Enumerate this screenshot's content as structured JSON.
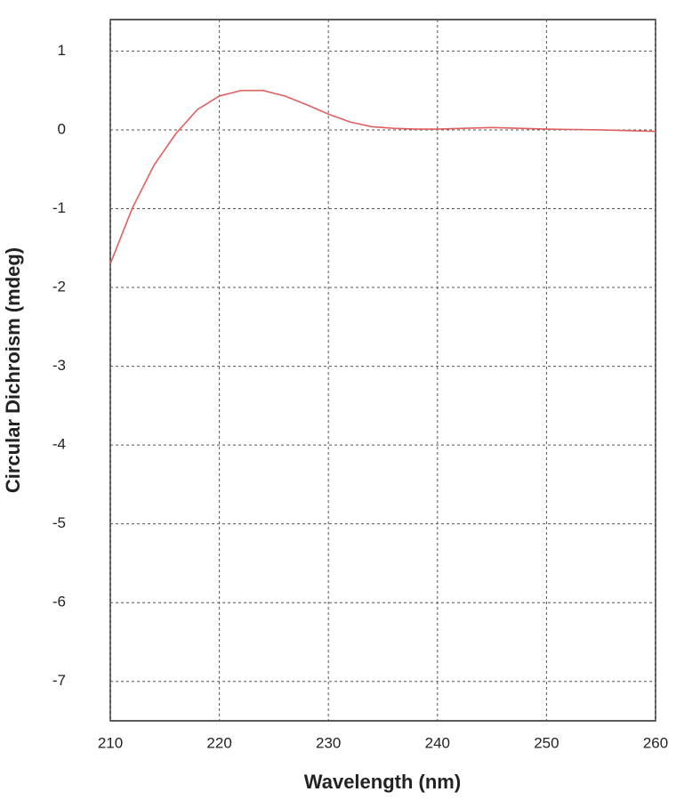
{
  "chart_data": {
    "type": "line",
    "xlabel": "Wavelength (nm)",
    "ylabel": "Circular Dichroism (mdeg)",
    "x": [
      210,
      212,
      214,
      216,
      218,
      220,
      222,
      224,
      226,
      228,
      230,
      232,
      234,
      236,
      238,
      240,
      245,
      250,
      255,
      260
    ],
    "series": [
      {
        "color": "#e06060",
        "values": [
          -1.7,
          -1.0,
          -0.45,
          -0.05,
          0.26,
          0.43,
          0.5,
          0.5,
          0.43,
          0.32,
          0.2,
          0.1,
          0.04,
          0.02,
          0.01,
          0.01,
          0.03,
          0.01,
          0.0,
          -0.02
        ]
      }
    ],
    "xlim": [
      210,
      260
    ],
    "xticks": [
      210,
      220,
      230,
      240,
      250,
      260
    ],
    "ylim": [
      -7.5,
      1.4
    ],
    "yticks": [
      1,
      0,
      -1,
      -2,
      -3,
      -4,
      -5,
      -6,
      -7
    ],
    "grid": true
  }
}
